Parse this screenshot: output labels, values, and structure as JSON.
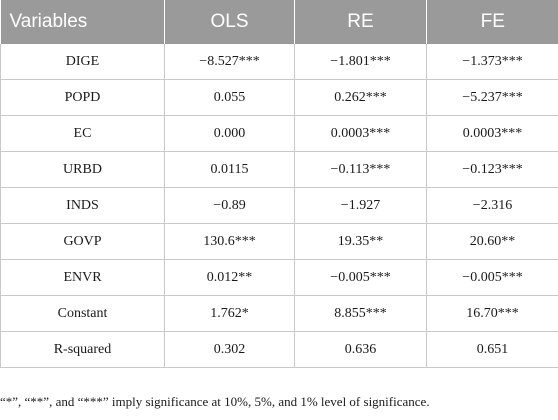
{
  "table": {
    "headers": [
      "Variables",
      "OLS",
      "RE",
      "FE"
    ],
    "rows": [
      [
        "DIGE",
        "−8.527***",
        "−1.801***",
        "−1.373***"
      ],
      [
        "POPD",
        "0.055",
        "0.262***",
        "−5.237***"
      ],
      [
        "EC",
        "0.000",
        "0.0003***",
        "0.0003***"
      ],
      [
        "URBD",
        "0.0115",
        "−0.113***",
        "−0.123***"
      ],
      [
        "INDS",
        "−0.89",
        "−1.927",
        "−2.316"
      ],
      [
        "GOVP",
        "130.6***",
        "19.35**",
        "20.60**"
      ],
      [
        "ENVR",
        "0.012**",
        "−0.005***",
        "−0.005***"
      ],
      [
        "Constant",
        "1.762*",
        "8.855***",
        "16.70***"
      ],
      [
        "R-squared",
        "0.302",
        "0.636",
        "0.651"
      ]
    ]
  },
  "footnote": "“*”, “**”, and “***” imply significance at 10%, 5%, and 1% level of significance."
}
